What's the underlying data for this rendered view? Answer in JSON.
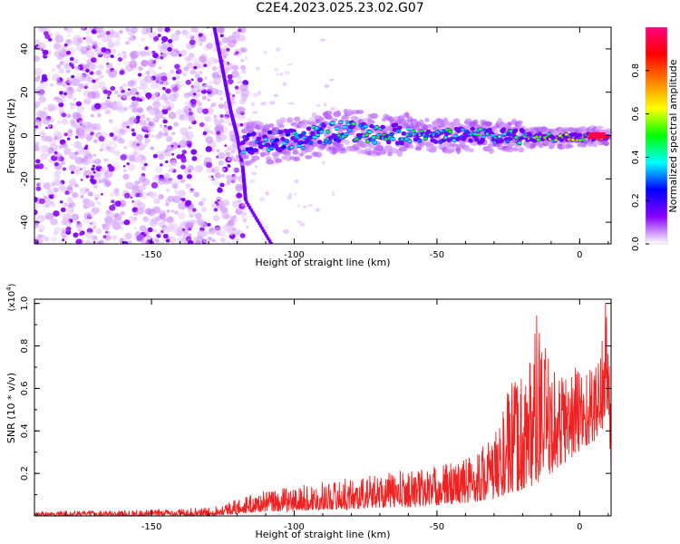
{
  "title": "C2E4.2023.025.23.02.G07",
  "chart_data": [
    {
      "type": "heatmap",
      "xlabel": "Height of straight line (km)",
      "ylabel": "Frequency (Hz)",
      "xlim": [
        -191,
        11
      ],
      "ylim": [
        -50,
        50
      ],
      "x_ticks": [
        -150,
        -100,
        -50,
        0
      ],
      "y_ticks": [
        -40,
        -20,
        0,
        20,
        40
      ],
      "colorbar": {
        "label": "Normalized spectral amplitude",
        "range": [
          0,
          1
        ],
        "ticks": [
          0.0,
          0.2,
          0.4,
          0.6,
          0.8
        ],
        "colors": [
          "#ffffff",
          "#8a00ff",
          "#0000ff",
          "#00ffff",
          "#00ff00",
          "#ffff00",
          "#ff8000",
          "#ff0000",
          "#ff0080"
        ]
      },
      "features": [
        {
          "name": "",
          "description": "dense noise region",
          "x_range": [
            -191,
            -125
          ],
          "y_range": [
            -50,
            50
          ],
          "amplitude": 0.1
        },
        {
          "name": "",
          "description": "diagonal streak",
          "x": [
            -128,
            -125,
            -122,
            -120,
            -118,
            -117
          ],
          "y": [
            50,
            30,
            10,
            0,
            -15,
            -30
          ],
          "amplitude": 0.15
        },
        {
          "name": "",
          "description": "carrier band",
          "x": [
            -118,
            -100,
            -85,
            -70,
            -50,
            -30,
            -15,
            0,
            10
          ],
          "y": [
            -4,
            -2,
            2,
            1,
            0,
            0,
            -1,
            -1,
            0
          ],
          "amplitude": [
            0.35,
            0.4,
            0.45,
            0.5,
            0.45,
            0.5,
            0.55,
            0.7,
            0.95
          ]
        }
      ],
      "grid": false
    },
    {
      "type": "line",
      "xlabel": "Height of straight line (km)",
      "ylabel": "SNR (10 * v/v)",
      "y_multiplier": "(x10^4)",
      "xlim": [
        -191,
        11
      ],
      "ylim": [
        0,
        1.02
      ],
      "x_ticks": [
        -150,
        -100,
        -50,
        0
      ],
      "y_ticks": [
        0.2,
        0.4,
        0.6,
        0.8,
        1.0
      ],
      "series": [
        {
          "name": "",
          "color": "#ee2222",
          "envelope": {
            "x": [
              -191,
              -150,
              -130,
              -120,
              -110,
              -100,
              -90,
              -80,
              -70,
              -60,
              -50,
              -40,
              -30,
              -25,
              -20,
              -15,
              -10,
              -5,
              0,
              5,
              8,
              9,
              10,
              11
            ],
            "low": [
              0.0,
              0.0,
              0.0,
              0.01,
              0.02,
              0.02,
              0.03,
              0.03,
              0.04,
              0.04,
              0.05,
              0.06,
              0.08,
              0.1,
              0.12,
              0.15,
              0.2,
              0.25,
              0.3,
              0.35,
              0.4,
              0.45,
              0.5,
              0.1
            ],
            "high": [
              0.02,
              0.03,
              0.04,
              0.08,
              0.12,
              0.14,
              0.16,
              0.18,
              0.2,
              0.22,
              0.24,
              0.28,
              0.38,
              0.6,
              0.7,
              0.95,
              0.7,
              0.7,
              0.75,
              0.7,
              0.9,
              1.02,
              0.9,
              0.7
            ]
          }
        }
      ],
      "grid": false
    }
  ]
}
